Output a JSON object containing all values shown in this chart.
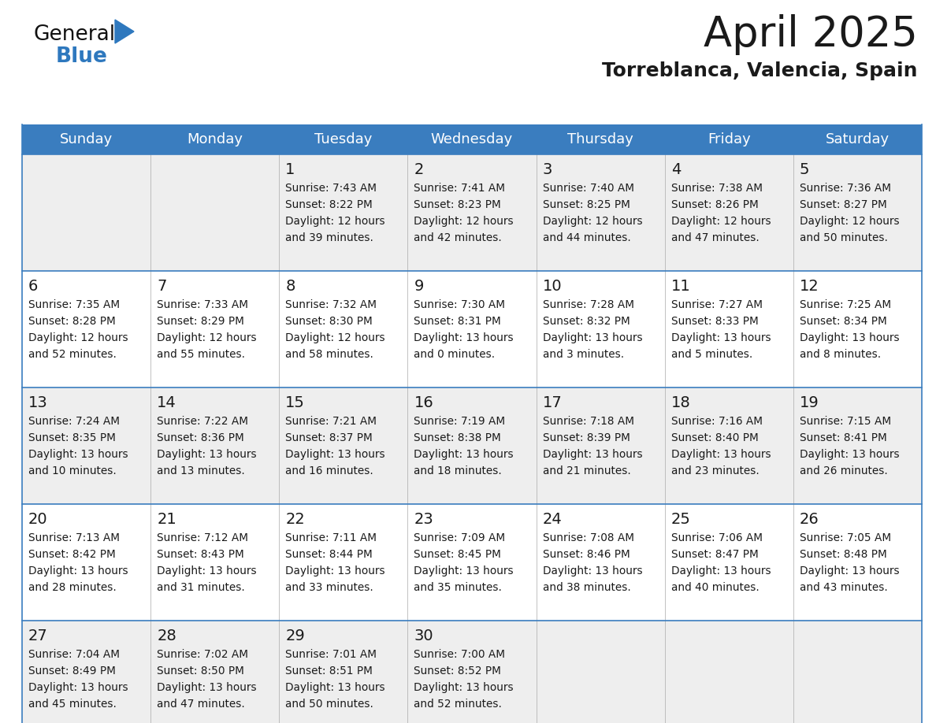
{
  "title": "April 2025",
  "subtitle": "Torreblanca, Valencia, Spain",
  "header_color": "#3a7dbf",
  "header_text_color": "#ffffff",
  "row_bg_colors": [
    "#eeeeee",
    "#ffffff",
    "#eeeeee",
    "#ffffff",
    "#eeeeee"
  ],
  "text_color": "#1a1a1a",
  "border_color": "#3a7dbf",
  "days_of_week": [
    "Sunday",
    "Monday",
    "Tuesday",
    "Wednesday",
    "Thursday",
    "Friday",
    "Saturday"
  ],
  "calendar_data": [
    [
      {
        "day": "",
        "info": ""
      },
      {
        "day": "",
        "info": ""
      },
      {
        "day": "1",
        "info": "Sunrise: 7:43 AM\nSunset: 8:22 PM\nDaylight: 12 hours\nand 39 minutes."
      },
      {
        "day": "2",
        "info": "Sunrise: 7:41 AM\nSunset: 8:23 PM\nDaylight: 12 hours\nand 42 minutes."
      },
      {
        "day": "3",
        "info": "Sunrise: 7:40 AM\nSunset: 8:25 PM\nDaylight: 12 hours\nand 44 minutes."
      },
      {
        "day": "4",
        "info": "Sunrise: 7:38 AM\nSunset: 8:26 PM\nDaylight: 12 hours\nand 47 minutes."
      },
      {
        "day": "5",
        "info": "Sunrise: 7:36 AM\nSunset: 8:27 PM\nDaylight: 12 hours\nand 50 minutes."
      }
    ],
    [
      {
        "day": "6",
        "info": "Sunrise: 7:35 AM\nSunset: 8:28 PM\nDaylight: 12 hours\nand 52 minutes."
      },
      {
        "day": "7",
        "info": "Sunrise: 7:33 AM\nSunset: 8:29 PM\nDaylight: 12 hours\nand 55 minutes."
      },
      {
        "day": "8",
        "info": "Sunrise: 7:32 AM\nSunset: 8:30 PM\nDaylight: 12 hours\nand 58 minutes."
      },
      {
        "day": "9",
        "info": "Sunrise: 7:30 AM\nSunset: 8:31 PM\nDaylight: 13 hours\nand 0 minutes."
      },
      {
        "day": "10",
        "info": "Sunrise: 7:28 AM\nSunset: 8:32 PM\nDaylight: 13 hours\nand 3 minutes."
      },
      {
        "day": "11",
        "info": "Sunrise: 7:27 AM\nSunset: 8:33 PM\nDaylight: 13 hours\nand 5 minutes."
      },
      {
        "day": "12",
        "info": "Sunrise: 7:25 AM\nSunset: 8:34 PM\nDaylight: 13 hours\nand 8 minutes."
      }
    ],
    [
      {
        "day": "13",
        "info": "Sunrise: 7:24 AM\nSunset: 8:35 PM\nDaylight: 13 hours\nand 10 minutes."
      },
      {
        "day": "14",
        "info": "Sunrise: 7:22 AM\nSunset: 8:36 PM\nDaylight: 13 hours\nand 13 minutes."
      },
      {
        "day": "15",
        "info": "Sunrise: 7:21 AM\nSunset: 8:37 PM\nDaylight: 13 hours\nand 16 minutes."
      },
      {
        "day": "16",
        "info": "Sunrise: 7:19 AM\nSunset: 8:38 PM\nDaylight: 13 hours\nand 18 minutes."
      },
      {
        "day": "17",
        "info": "Sunrise: 7:18 AM\nSunset: 8:39 PM\nDaylight: 13 hours\nand 21 minutes."
      },
      {
        "day": "18",
        "info": "Sunrise: 7:16 AM\nSunset: 8:40 PM\nDaylight: 13 hours\nand 23 minutes."
      },
      {
        "day": "19",
        "info": "Sunrise: 7:15 AM\nSunset: 8:41 PM\nDaylight: 13 hours\nand 26 minutes."
      }
    ],
    [
      {
        "day": "20",
        "info": "Sunrise: 7:13 AM\nSunset: 8:42 PM\nDaylight: 13 hours\nand 28 minutes."
      },
      {
        "day": "21",
        "info": "Sunrise: 7:12 AM\nSunset: 8:43 PM\nDaylight: 13 hours\nand 31 minutes."
      },
      {
        "day": "22",
        "info": "Sunrise: 7:11 AM\nSunset: 8:44 PM\nDaylight: 13 hours\nand 33 minutes."
      },
      {
        "day": "23",
        "info": "Sunrise: 7:09 AM\nSunset: 8:45 PM\nDaylight: 13 hours\nand 35 minutes."
      },
      {
        "day": "24",
        "info": "Sunrise: 7:08 AM\nSunset: 8:46 PM\nDaylight: 13 hours\nand 38 minutes."
      },
      {
        "day": "25",
        "info": "Sunrise: 7:06 AM\nSunset: 8:47 PM\nDaylight: 13 hours\nand 40 minutes."
      },
      {
        "day": "26",
        "info": "Sunrise: 7:05 AM\nSunset: 8:48 PM\nDaylight: 13 hours\nand 43 minutes."
      }
    ],
    [
      {
        "day": "27",
        "info": "Sunrise: 7:04 AM\nSunset: 8:49 PM\nDaylight: 13 hours\nand 45 minutes."
      },
      {
        "day": "28",
        "info": "Sunrise: 7:02 AM\nSunset: 8:50 PM\nDaylight: 13 hours\nand 47 minutes."
      },
      {
        "day": "29",
        "info": "Sunrise: 7:01 AM\nSunset: 8:51 PM\nDaylight: 13 hours\nand 50 minutes."
      },
      {
        "day": "30",
        "info": "Sunrise: 7:00 AM\nSunset: 8:52 PM\nDaylight: 13 hours\nand 52 minutes."
      },
      {
        "day": "",
        "info": ""
      },
      {
        "day": "",
        "info": ""
      },
      {
        "day": "",
        "info": ""
      }
    ]
  ],
  "logo_general_color": "#111111",
  "logo_blue_color": "#2e78be",
  "figsize": [
    11.88,
    9.18
  ],
  "dpi": 100
}
